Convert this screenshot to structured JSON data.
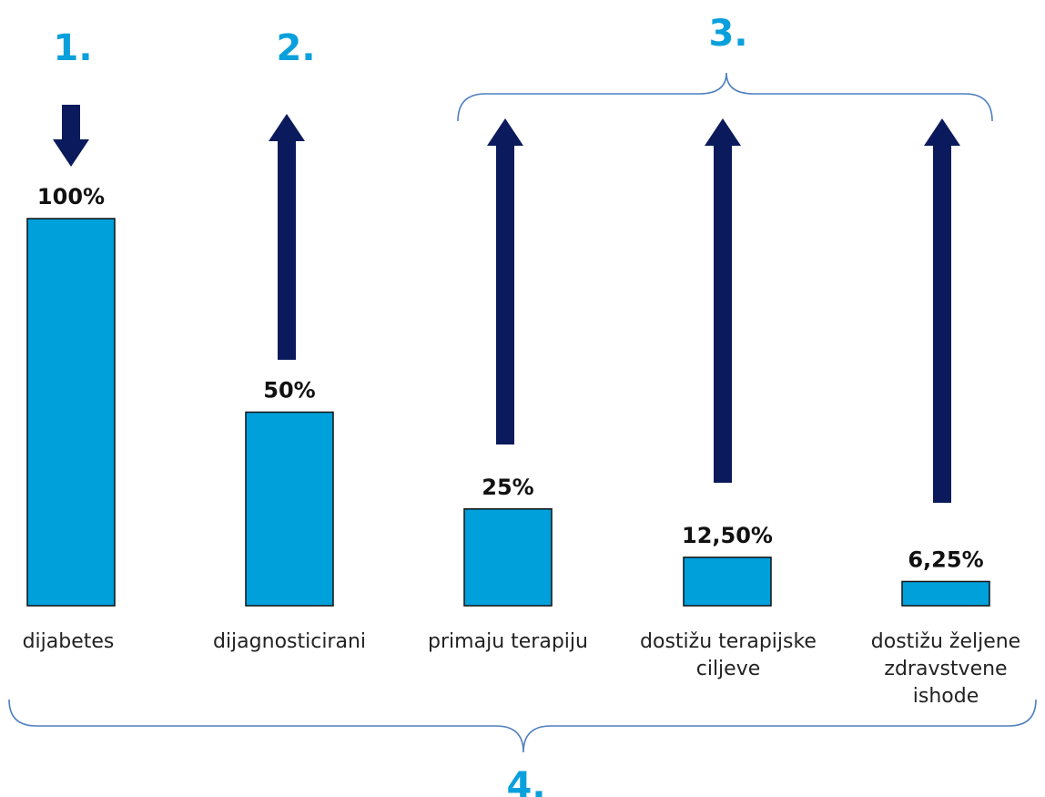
{
  "colors": {
    "bar": "#00a0db",
    "bar_outline": "#111111",
    "arrow": "#0a1a5c",
    "brace": "#4f7fbf",
    "marker": "#0aa0dc"
  },
  "chart_data": {
    "type": "bar",
    "categories": [
      [
        "dijabetes"
      ],
      [
        "dijagnosticirani"
      ],
      [
        "primaju terapiju"
      ],
      [
        "dostižu terapijske",
        "ciljeve"
      ],
      [
        "dostižu željene",
        "zdravstvene",
        "ishode"
      ]
    ],
    "values": [
      100,
      50,
      25,
      12.5,
      6.25
    ],
    "value_labels": [
      "100%",
      "50%",
      "25%",
      "12,50%",
      "6,25%"
    ],
    "ylim": [
      0,
      100
    ],
    "title": "",
    "xlabel": "",
    "ylabel": "",
    "arrows": [
      {
        "category": 0,
        "direction": "down"
      },
      {
        "category": 1,
        "direction": "up"
      },
      {
        "category": 2,
        "direction": "up"
      },
      {
        "category": 3,
        "direction": "up"
      },
      {
        "category": 4,
        "direction": "up"
      }
    ],
    "markers": [
      {
        "label": "1.",
        "target": "category 1"
      },
      {
        "label": "2.",
        "target": "category 2"
      },
      {
        "label": "3.",
        "target": "categories 3-5 (top brace)"
      },
      {
        "label": "4.",
        "target": "all categories (bottom brace)"
      }
    ]
  }
}
